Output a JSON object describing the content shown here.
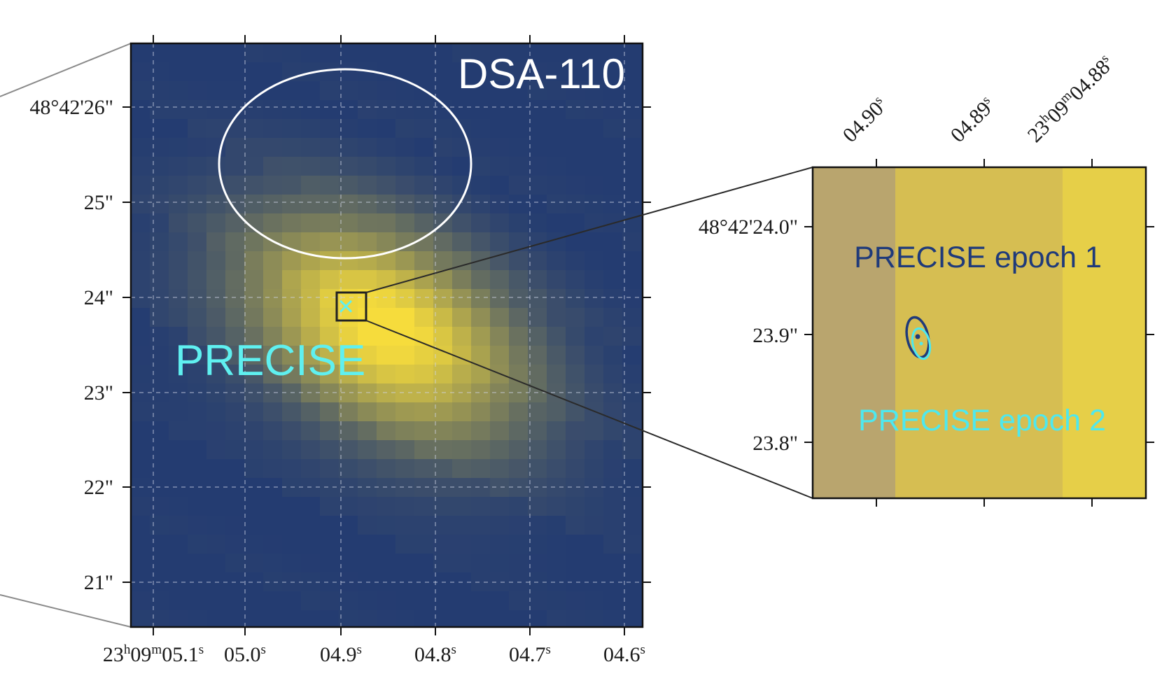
{
  "colors": {
    "map_background": "#243c71",
    "emission_peak": "#f6dc3c",
    "ellipse": "#ffffff",
    "precise_marker": "#5ff0f0",
    "epoch1": "#1f3a7a",
    "epoch2": "#4ee8ee",
    "zoom_band_left": "#b9a56e",
    "zoom_band_mid": "#d6be52",
    "zoom_band_right": "#e6cf48",
    "connector": "#888888"
  },
  "left_panel": {
    "label_instrument": "DSA-110",
    "label_source": "PRECISE",
    "marker_symbol": "×",
    "dec_ticks": [
      "48°42'26\"",
      "25\"",
      "24\"",
      "23\"",
      "22\"",
      "21\""
    ],
    "ra_ticks": [
      {
        "main": "23",
        "h": "h",
        "mid": "09",
        "m": "m",
        "tail": "05.1",
        "s": "s"
      },
      {
        "main": "05.0",
        "s": "s"
      },
      {
        "main": "04.9",
        "s": "s"
      },
      {
        "main": "04.8",
        "s": "s"
      },
      {
        "main": "04.7",
        "s": "s"
      },
      {
        "main": "04.6",
        "s": "s"
      }
    ]
  },
  "right_panel": {
    "label_epoch1": "PRECISE epoch 1",
    "label_epoch2": "PRECISE epoch 2",
    "dec_ticks": [
      "48°42'24.0\"",
      "23.9\"",
      "23.8\""
    ],
    "ra_ticks": [
      {
        "main": "04.90",
        "s": "s"
      },
      {
        "main": "04.89",
        "s": "s"
      },
      {
        "main": "23",
        "h": "h",
        "mid": "09",
        "m": "m",
        "tail": "04.88",
        "s": "s"
      }
    ]
  }
}
